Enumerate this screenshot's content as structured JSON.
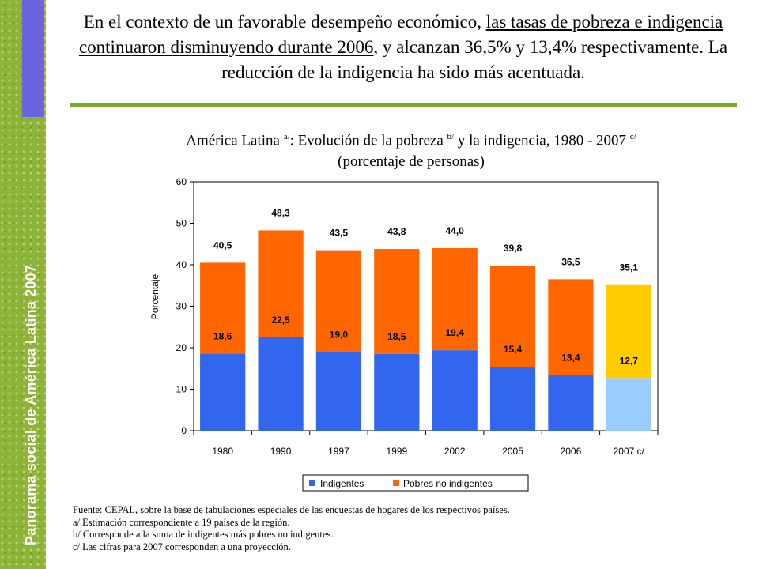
{
  "sidebar": {
    "label": "Panorama social de América Latina  2007"
  },
  "headline": {
    "part1": "En el contexto de un favorable desempeño económico, ",
    "underlined": "las tasas de pobreza e indigencia continuaron disminuyendo durante 2006",
    "part2": ", y alcanzan 36,5% y 13,4% respectivamente. La reducción de la indigencia ha sido más acentuada."
  },
  "chart_title": {
    "main": "América Latina ",
    "sup_a": "a/",
    "mid": ": Evolución de la pobreza ",
    "sup_b": "b/",
    "rest": " y la indigencia, 1980 - 2007 ",
    "sup_c": "c/",
    "line2": "(porcentaje de personas)"
  },
  "chart_data": {
    "type": "bar",
    "stacked": true,
    "categories": [
      "1980",
      "1990",
      "1997",
      "1999",
      "2002",
      "2005",
      "2006",
      "2007  c/"
    ],
    "ylabel": "Porcentaje",
    "ylim": [
      0,
      60
    ],
    "yticks": [
      0,
      10,
      20,
      30,
      40,
      50,
      60
    ],
    "series": [
      {
        "name": "Indigentes",
        "values": [
          18.6,
          22.5,
          19.0,
          18.5,
          19.4,
          15.4,
          13.4,
          12.7
        ],
        "color": "#3366ee"
      },
      {
        "name": "Pobres no indigentes",
        "values": [
          21.9,
          25.8,
          24.5,
          25.3,
          24.6,
          24.4,
          23.1,
          22.4
        ],
        "color": "#ff6600"
      }
    ],
    "projection_colors": {
      "Indigentes": "#99ccff",
      "Pobres no indigentes": "#ffcc00"
    },
    "indigent_labels": [
      "18,6",
      "22,5",
      "19,0",
      "18,5",
      "19,4",
      "15,4",
      "13,4",
      "12,7"
    ],
    "total_labels": [
      "40,5",
      "48,3",
      "43,5",
      "43,8",
      "44,0",
      "39,8",
      "36,5",
      "35,1"
    ],
    "grid": false,
    "legend_position": "bottom"
  },
  "footer": {
    "source": "Fuente: CEPAL, sobre la base de tabulaciones especiales de las encuestas de hogares de los respectivos países.",
    "note_a": "a/ Estimación correspondiente a 19 países de la región.",
    "note_b": "b/ Corresponde a la suma de indigentes más pobres no indigentes.",
    "note_c": "c/ Las cifras para 2007 corresponden a una proyección."
  }
}
